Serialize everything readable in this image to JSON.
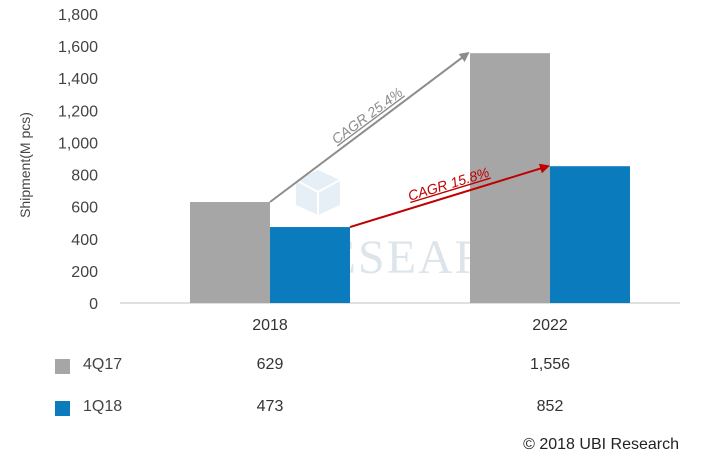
{
  "chart_data": {
    "type": "bar",
    "ylabel": "Shipment(M pcs)",
    "ylim": [
      0,
      1800
    ],
    "yticks": [
      "0",
      "200",
      "400",
      "600",
      "800",
      "1,000",
      "1,200",
      "1,400",
      "1,600",
      "1,800"
    ],
    "categories": [
      "2018",
      "2022"
    ],
    "series": [
      {
        "name": "4Q17",
        "color": "#a6a6a6",
        "values": [
          629,
          1556
        ],
        "labels": [
          "629",
          "1,556"
        ]
      },
      {
        "name": "1Q18",
        "color": "#0a7bbd",
        "values": [
          473,
          852
        ],
        "labels": [
          "473",
          "852"
        ]
      }
    ],
    "annotations": [
      {
        "text": "CAGR 25.4%",
        "color": "#8c8c8c",
        "series": "4Q17"
      },
      {
        "text": "CAGR 15.8%",
        "color": "#c00000",
        "series": "1Q18"
      }
    ],
    "watermark": "UBI RESEARCH",
    "grid": false,
    "legend": "table-below"
  },
  "footer": {
    "copyright": "© 2018 UBI Research"
  }
}
